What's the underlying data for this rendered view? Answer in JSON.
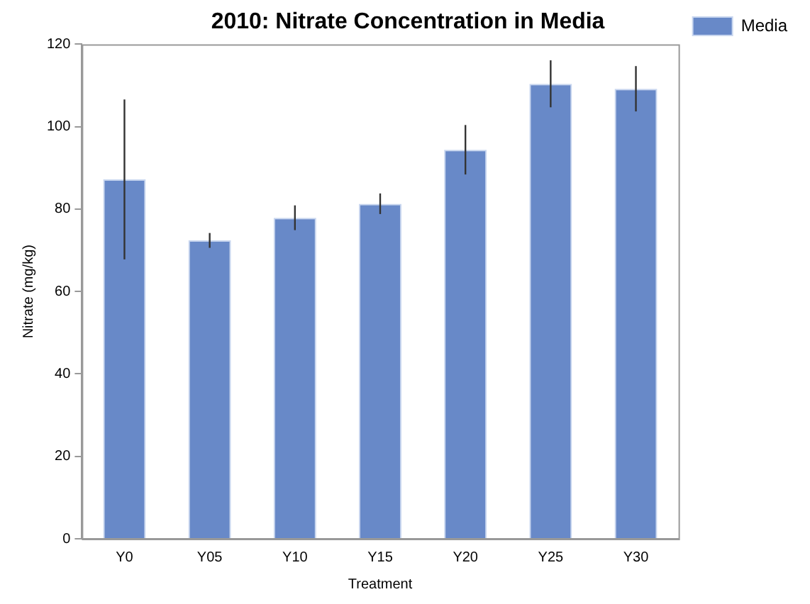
{
  "chart_data": {
    "type": "bar",
    "title": "2010: Nitrate Concentration in Media",
    "xlabel": "Treatment",
    "ylabel": "Nitrate (mg/kg)",
    "categories": [
      "Y0",
      "Y05",
      "Y10",
      "Y15",
      "Y20",
      "Y25",
      "Y30"
    ],
    "series": [
      {
        "name": "Media",
        "color": "#6889c8",
        "values": [
          87.2,
          72.4,
          77.9,
          81.3,
          94.4,
          110.4,
          109.2
        ],
        "errors": [
          19.4,
          1.8,
          3,
          2.5,
          6,
          5.7,
          5.5
        ]
      }
    ],
    "ylim": [
      0,
      120
    ],
    "yticks": [
      0,
      20,
      40,
      60,
      80,
      100,
      120
    ],
    "grid": false,
    "legend": "top right"
  }
}
